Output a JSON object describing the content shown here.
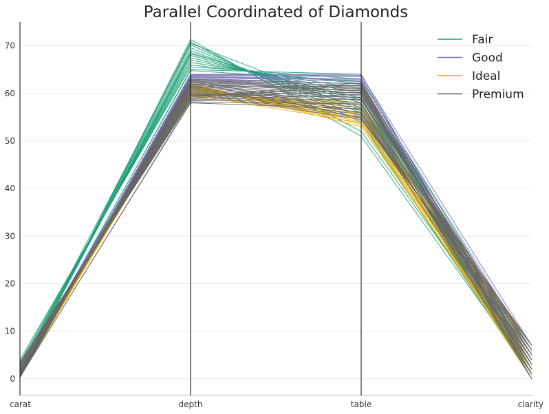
{
  "chart_data": {
    "type": "parallel-coordinates",
    "title": "Parallel Coordinated of Diamonds",
    "axes": [
      "carat",
      "depth",
      "table",
      "clarity"
    ],
    "ylim": [
      -3.5,
      75
    ],
    "yticks": [
      0,
      10,
      20,
      30,
      40,
      50,
      60,
      70
    ],
    "grid": true,
    "legend_position": "top-right",
    "series": [
      {
        "name": "Fair",
        "color": "#1b9e77",
        "lines": [
          [
            0.3,
            71.3,
            51.0,
            1
          ],
          [
            0.5,
            70.8,
            52.0,
            2
          ],
          [
            0.7,
            70.2,
            54.0,
            0
          ],
          [
            0.9,
            69.6,
            55.0,
            3
          ],
          [
            1.0,
            69.0,
            56.0,
            1
          ],
          [
            1.2,
            68.6,
            57.0,
            2
          ],
          [
            1.5,
            68.0,
            58.0,
            4
          ],
          [
            2.0,
            67.5,
            59.0,
            1
          ],
          [
            2.5,
            67.0,
            60.0,
            2
          ],
          [
            3.0,
            66.5,
            61.0,
            0
          ],
          [
            3.5,
            66.0,
            62.0,
            3
          ],
          [
            4.0,
            65.6,
            63.0,
            5
          ],
          [
            0.4,
            65.0,
            64.0,
            2
          ],
          [
            0.8,
            64.8,
            62.5,
            1
          ],
          [
            1.1,
            68.3,
            58.5,
            4
          ],
          [
            1.8,
            70.5,
            56.5,
            0
          ]
        ]
      },
      {
        "name": "Good",
        "color": "#7570b3",
        "lines": [
          [
            0.3,
            64.0,
            64.0,
            2
          ],
          [
            0.5,
            63.8,
            63.5,
            1
          ],
          [
            0.7,
            63.6,
            63.0,
            3
          ],
          [
            0.9,
            63.4,
            62.5,
            0
          ],
          [
            1.0,
            63.2,
            62.0,
            4
          ],
          [
            1.2,
            63.0,
            61.5,
            2
          ],
          [
            1.5,
            62.8,
            61.0,
            1
          ],
          [
            2.0,
            62.6,
            60.5,
            5
          ],
          [
            0.6,
            63.9,
            63.8,
            7
          ],
          [
            0.4,
            63.5,
            62.8,
            6
          ]
        ]
      },
      {
        "name": "Ideal",
        "color": "#e6ab02",
        "lines": [
          [
            0.3,
            62.0,
            53.0,
            2
          ],
          [
            0.5,
            61.8,
            53.5,
            1
          ],
          [
            0.7,
            61.6,
            54.0,
            3
          ],
          [
            0.9,
            61.4,
            54.5,
            0
          ],
          [
            1.0,
            61.2,
            55.0,
            4
          ],
          [
            1.2,
            61.0,
            55.5,
            2
          ],
          [
            1.5,
            60.8,
            56.0,
            1
          ],
          [
            2.0,
            60.6,
            56.5,
            5
          ],
          [
            0.4,
            60.4,
            57.0,
            6
          ],
          [
            0.6,
            60.2,
            57.5,
            3
          ],
          [
            0.8,
            60.0,
            58.0,
            2
          ],
          [
            1.1,
            59.8,
            53.8,
            7
          ],
          [
            1.3,
            59.6,
            54.8,
            1
          ],
          [
            1.7,
            59.4,
            55.8,
            0
          ]
        ]
      },
      {
        "name": "Premium",
        "color": "#666666",
        "lines": [
          [
            0.2,
            63.0,
            62.0,
            0
          ],
          [
            0.3,
            62.8,
            61.5,
            1
          ],
          [
            0.4,
            62.6,
            61.0,
            2
          ],
          [
            0.5,
            62.4,
            60.5,
            3
          ],
          [
            0.6,
            62.2,
            60.0,
            4
          ],
          [
            0.7,
            62.0,
            59.5,
            5
          ],
          [
            0.8,
            61.8,
            59.0,
            6
          ],
          [
            0.9,
            61.6,
            58.5,
            7
          ],
          [
            1.0,
            61.4,
            58.0,
            0
          ],
          [
            1.1,
            61.2,
            57.5,
            1
          ],
          [
            1.2,
            61.0,
            57.0,
            2
          ],
          [
            1.3,
            60.8,
            56.5,
            3
          ],
          [
            1.4,
            60.6,
            56.0,
            4
          ],
          [
            1.5,
            60.4,
            55.5,
            5
          ],
          [
            1.6,
            60.2,
            55.0,
            6
          ],
          [
            1.7,
            60.0,
            54.5,
            7
          ],
          [
            1.8,
            59.8,
            59.2,
            2
          ],
          [
            2.0,
            59.6,
            60.2,
            3
          ],
          [
            2.2,
            59.4,
            61.2,
            1
          ],
          [
            2.5,
            59.2,
            62.2,
            4
          ],
          [
            2.8,
            59.0,
            61.8,
            5
          ],
          [
            3.0,
            58.8,
            60.8,
            6
          ],
          [
            3.2,
            58.6,
            59.8,
            2
          ],
          [
            3.5,
            58.4,
            58.8,
            0
          ],
          [
            0.35,
            58.2,
            57.8,
            3
          ],
          [
            0.45,
            58.0,
            56.8,
            7
          ],
          [
            0.55,
            62.9,
            55.8,
            1
          ],
          [
            0.65,
            62.5,
            54.8,
            6
          ],
          [
            0.75,
            61.9,
            60.6,
            4
          ],
          [
            0.85,
            61.3,
            61.6,
            2
          ]
        ]
      }
    ]
  }
}
